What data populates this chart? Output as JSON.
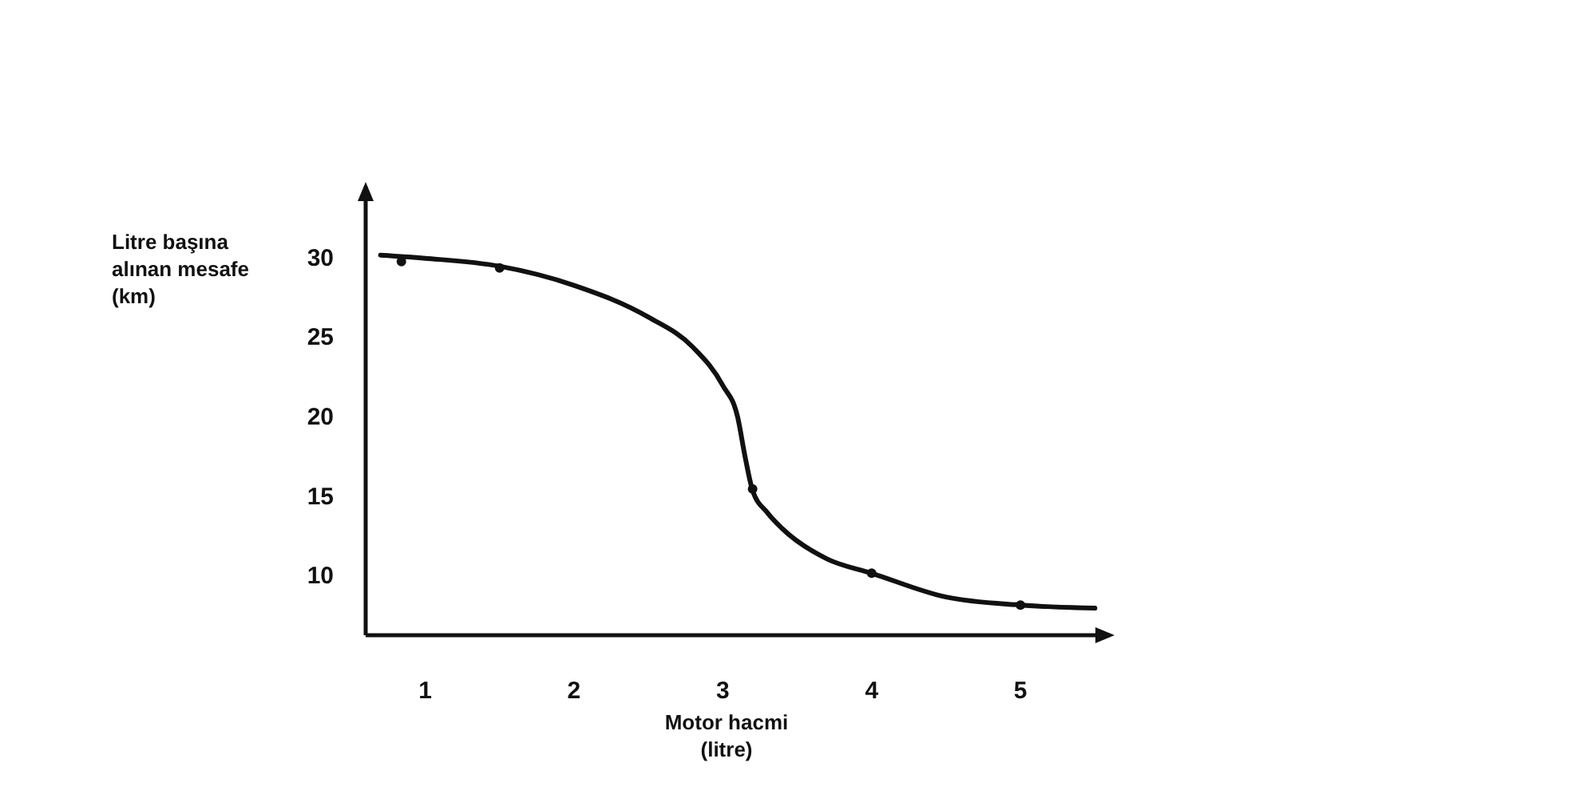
{
  "chart_data": {
    "type": "line",
    "xlabel": "Motor hacmi\n(litre)",
    "ylabel": "Litre başına\nalınan mesafe\n(km)",
    "xlim": [
      0.6,
      5.6
    ],
    "ylim": [
      6.3,
      34.5
    ],
    "xticks": [
      1,
      2,
      3,
      4,
      5
    ],
    "yticks": [
      10,
      15,
      20,
      25,
      30
    ],
    "grid": false,
    "series": [
      {
        "color": "#111111",
        "marker": "none",
        "x": [
          0.7,
          1.0,
          1.5,
          2.0,
          2.5,
          2.8,
          3.0,
          3.1,
          3.15,
          3.2,
          3.3,
          3.4,
          3.7,
          4.0,
          4.5,
          5.0,
          5.5
        ],
        "values": [
          30.2,
          30.0,
          29.5,
          28.3,
          26.3,
          24.4,
          22.0,
          20.0,
          17.5,
          15.4,
          14.0,
          13.0,
          11.1,
          10.2,
          8.7,
          8.2,
          8.0
        ]
      },
      {
        "type": "scatter",
        "color": "#111111",
        "marker": "circle",
        "x": [
          0.84,
          1.5,
          3.2,
          4.0,
          5.0
        ],
        "values": [
          29.8,
          29.4,
          15.5,
          10.2,
          8.2
        ]
      }
    ]
  }
}
